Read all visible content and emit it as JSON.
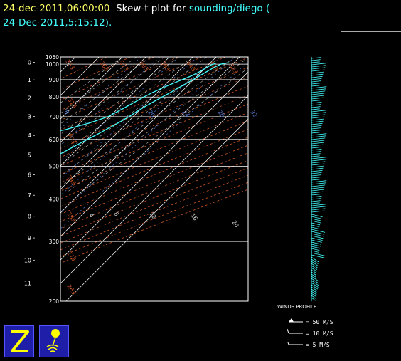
{
  "title": {
    "date_time": "24-dec-2011,06:00:00",
    "plot_label": "Skew-t plot for",
    "source": "sounding/diego",
    "paren_open": "(",
    "issued": "24-Dec-2011,5:15:12)."
  },
  "colors": {
    "background": "#000000",
    "profile": "#44ffff",
    "date_text": "#ffff66",
    "dry_adiabats": "#cc5522",
    "moist_adiabats": "#aaaaaa",
    "mixing_ratio": "#5577cc",
    "icon_bg": "#1e1ea8",
    "icon_fg": "#ffff00"
  },
  "chart_data": {
    "type": "line",
    "title": "Skew-t plot for sounding/diego",
    "pressure_levels_hpa": [
      1050,
      1000,
      900,
      800,
      700,
      600,
      500,
      400,
      300,
      200
    ],
    "pressure_tick_labels": [
      "1050",
      "1000",
      "900",
      "800",
      "700",
      "600",
      "500",
      "400",
      "300",
      "200"
    ],
    "height_km_ticks": [
      "0",
      "1",
      "2",
      "3",
      "4",
      "5",
      "6",
      "7",
      "8",
      "9",
      "10",
      "11"
    ],
    "top_temperature_labels": [
      "-70",
      "-60",
      "-50",
      "-40",
      "-30",
      "-20"
    ],
    "right_temperature_labels": [
      "-10",
      "0",
      "10",
      "20",
      "30"
    ],
    "dry_adiabat_labels": [
      "353",
      "363",
      "373",
      "383",
      "393",
      "343",
      "333",
      "323",
      "313",
      "303",
      "293",
      "283",
      "273",
      "263",
      "253"
    ],
    "mixing_ratio_labels": [
      "8",
      "20",
      "24",
      "28",
      "32"
    ],
    "moist_labels": [
      "4",
      "8",
      "12",
      "16",
      "20"
    ],
    "plim": [
      1050,
      200
    ],
    "xlim_degC": [
      -40,
      40
    ],
    "series": [
      {
        "name": "temperature",
        "p": [
          1010,
          1000,
          975,
          950,
          925,
          900,
          875,
          850,
          825,
          800,
          775,
          750,
          725,
          700,
          675,
          650,
          625,
          600,
          575,
          550,
          525,
          500,
          475,
          450,
          425,
          400,
          375,
          350,
          325,
          300,
          275,
          250,
          225,
          200
        ],
        "t": [
          27.6,
          25.0,
          23.4,
          22.2,
          21.0,
          19.8,
          18.4,
          17.0,
          15.6,
          14.0,
          12.4,
          10.8,
          9.4,
          8.2,
          6.6,
          4.6,
          2.6,
          0.2,
          -2.2,
          -4.6,
          -7.4,
          -9.8,
          -12.6,
          -15.8,
          -19.2,
          -22.8,
          -26.6,
          -30.4,
          -35.0,
          -40.2,
          -45.8,
          -51.6,
          -57.8,
          -64.0
        ]
      },
      {
        "name": "dewpoint",
        "p": [
          1005,
          995,
          975,
          950,
          925,
          900,
          875,
          850,
          825,
          800,
          775,
          750,
          725,
          700,
          690,
          680,
          670,
          660,
          650,
          640,
          630,
          620,
          615,
          610,
          600,
          590,
          580,
          575,
          570,
          560,
          550,
          540,
          530,
          525,
          520,
          515,
          510,
          505,
          500,
          495,
          490,
          485,
          480,
          470,
          460,
          450,
          440,
          430,
          420,
          410,
          400,
          390,
          380,
          370,
          360,
          350,
          340,
          330,
          320,
          310,
          300,
          295,
          290,
          285,
          280,
          275,
          270,
          265,
          260,
          255,
          250,
          245,
          240,
          235,
          230,
          225,
          220,
          215,
          210,
          205,
          200
        ],
        "t": [
          22.4,
          21.2,
          20.4,
          19.2,
          17.6,
          15.2,
          12.6,
          10.2,
          8.0,
          6.2,
          4.6,
          3.0,
          1.2,
          -0.8,
          -2.4,
          -4.2,
          -6.0,
          -8.6,
          -11.2,
          -13.6,
          -18.4,
          -24.6,
          -16.0,
          -22.8,
          -17.2,
          -26.8,
          -21.6,
          -14.2,
          -19.8,
          -24.0,
          -20.8,
          -26.4,
          -30.2,
          -38.0,
          -50.4,
          -34.8,
          -58.0,
          -30.6,
          -44.6,
          -27.8,
          -34.6,
          -28.4,
          -31.8,
          -33.6,
          -30.0,
          -31.6,
          -33.2,
          -34.4,
          -35.6,
          -36.8,
          -38.0,
          -39.2,
          -40.4,
          -41.6,
          -42.8,
          -44.0,
          -47.6,
          -52.0,
          -57.4,
          -63.4,
          -66.8,
          -71.2,
          -69.6,
          -74.4,
          -72.4,
          -77.6,
          -81.4,
          -79.6,
          -74.8,
          -72.6,
          -76.8,
          -75.0,
          -71.4,
          -73.2,
          -70.4,
          -68.2,
          -72.2,
          -69.8,
          -71.6,
          -70.8,
          -69.6
        ]
      }
    ],
    "wind_profile_label": "WINDS PROFILE",
    "wind_legend": [
      {
        "speed": "= 50 M/S"
      },
      {
        "speed": "= 10 M/S"
      },
      {
        "speed": "= 5 M/S"
      }
    ]
  }
}
